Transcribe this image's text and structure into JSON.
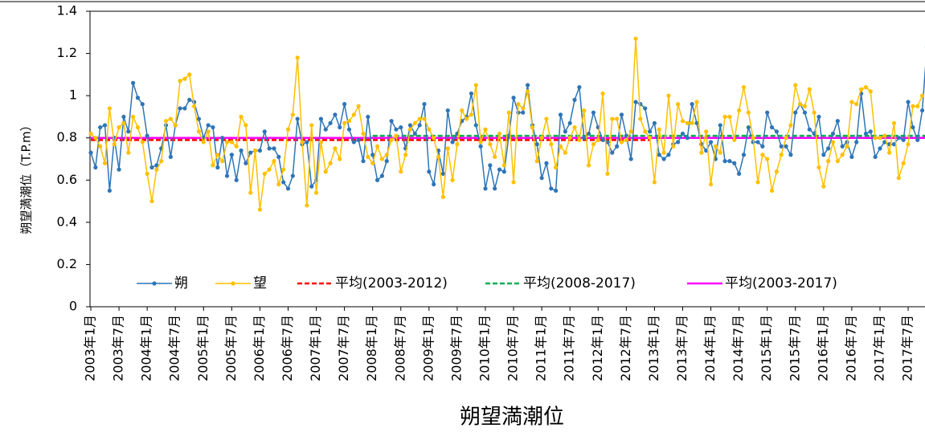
{
  "chart_data": {
    "type": "line",
    "xlabel": "朔望満潮位",
    "ylabel": "朔望満潮位（T.P.m）",
    "categories": [
      "2003年1月",
      null,
      null,
      null,
      null,
      null,
      "2003年7月",
      null,
      null,
      null,
      null,
      null,
      "2004年1月",
      null,
      null,
      null,
      null,
      null,
      "2004年7月",
      null,
      null,
      null,
      null,
      null,
      "2005年1月",
      null,
      null,
      null,
      null,
      null,
      "2005年7月",
      null,
      null,
      null,
      null,
      null,
      "2006年1月",
      null,
      null,
      null,
      null,
      null,
      "2006年7月",
      null,
      null,
      null,
      null,
      null,
      "2007年1月",
      null,
      null,
      null,
      null,
      null,
      "2007年7月",
      null,
      null,
      null,
      null,
      null,
      "2008年1月",
      null,
      null,
      null,
      null,
      null,
      "2008年7月",
      null,
      null,
      null,
      null,
      null,
      "2009年1月",
      null,
      null,
      null,
      null,
      null,
      "2009年7月",
      null,
      null,
      null,
      null,
      null,
      "2010年1月",
      null,
      null,
      null,
      null,
      null,
      "2010年7月",
      null,
      null,
      null,
      null,
      null,
      "2011年1月",
      null,
      null,
      null,
      null,
      null,
      "2011年7月",
      null,
      null,
      null,
      null,
      null,
      "2012年1月",
      null,
      null,
      null,
      null,
      null,
      "2012年7月",
      null,
      null,
      null,
      null,
      null,
      "2013年1月",
      null,
      null,
      null,
      null,
      null,
      "2013年7月",
      null,
      null,
      null,
      null,
      null,
      "2014年1月",
      null,
      null,
      null,
      null,
      null,
      "2014年7月",
      null,
      null,
      null,
      null,
      null,
      "2015年1月",
      null,
      null,
      null,
      null,
      null,
      "2015年7月",
      null,
      null,
      null,
      null,
      null,
      "2016年1月",
      null,
      null,
      null,
      null,
      null,
      "2016年7月",
      null,
      null,
      null,
      null,
      null,
      "2017年1月",
      null,
      null,
      null,
      null,
      null,
      "2017年7月",
      null,
      null,
      null,
      null,
      null
    ],
    "series": [
      {
        "name": "朔",
        "color": "#2e75b6",
        "values": [
          0.73,
          0.66,
          0.85,
          0.86,
          0.55,
          0.8,
          0.65,
          0.9,
          0.83,
          1.06,
          0.99,
          0.96,
          0.81,
          0.66,
          0.67,
          0.75,
          0.86,
          0.71,
          0.86,
          0.94,
          0.94,
          0.98,
          0.97,
          0.89,
          0.8,
          0.86,
          0.85,
          0.66,
          0.8,
          0.62,
          0.72,
          0.6,
          0.74,
          0.68,
          0.73,
          0.74,
          0.74,
          0.83,
          0.75,
          0.75,
          0.71,
          0.59,
          0.56,
          0.62,
          0.89,
          0.77,
          0.78,
          0.57,
          0.6,
          0.89,
          0.84,
          0.87,
          0.91,
          0.85,
          0.96,
          0.84,
          0.78,
          0.79,
          0.69,
          0.9,
          0.72,
          0.6,
          0.62,
          0.69,
          0.88,
          0.84,
          0.85,
          0.75,
          0.86,
          0.82,
          0.86,
          0.96,
          0.64,
          0.58,
          0.74,
          0.63,
          0.93,
          0.78,
          0.82,
          0.88,
          0.9,
          1.01,
          0.86,
          0.76,
          0.56,
          0.67,
          0.56,
          0.65,
          0.64,
          0.81,
          0.99,
          0.92,
          0.92,
          1.05,
          0.86,
          0.77,
          0.61,
          0.68,
          0.56,
          0.55,
          0.91,
          0.83,
          0.87,
          0.98,
          1.04,
          0.8,
          0.82,
          0.92,
          0.85,
          0.79,
          0.78,
          0.73,
          0.76,
          0.91,
          0.81,
          0.7,
          0.97,
          0.96,
          0.94,
          0.83,
          0.87,
          0.72,
          0.7,
          0.72,
          0.77,
          0.78,
          0.82,
          0.8,
          0.96,
          0.87,
          0.77,
          0.74,
          0.78,
          0.7,
          0.86,
          0.69,
          0.69,
          0.68,
          0.63,
          0.72,
          0.85,
          0.78,
          0.78,
          0.76,
          0.92,
          0.85,
          0.83,
          0.76,
          0.76,
          0.72,
          0.92,
          0.96,
          0.92,
          0.84,
          0.82,
          0.9,
          0.72,
          0.75,
          0.82,
          0.88,
          0.76,
          0.78,
          0.71,
          0.78,
          1.01,
          0.82,
          0.83,
          0.71,
          0.75,
          0.78,
          0.77,
          0.77,
          0.8,
          0.79,
          0.97,
          0.85,
          0.79,
          0.93,
          1.23,
          null
        ]
      },
      {
        "name": "望",
        "color": "#ffc000",
        "values": [
          0.82,
          0.8,
          0.76,
          0.68,
          0.94,
          0.77,
          0.85,
          0.87,
          0.73,
          0.9,
          0.85,
          0.78,
          0.63,
          0.5,
          0.65,
          0.69,
          0.88,
          0.89,
          0.86,
          1.07,
          1.08,
          1.1,
          0.95,
          0.83,
          0.78,
          0.83,
          0.67,
          0.72,
          0.69,
          0.78,
          0.78,
          0.76,
          0.9,
          0.86,
          0.54,
          0.74,
          0.46,
          0.63,
          0.65,
          0.69,
          0.58,
          0.65,
          0.84,
          0.91,
          1.18,
          0.78,
          0.48,
          0.86,
          0.54,
          0.78,
          0.64,
          0.68,
          0.75,
          0.7,
          0.87,
          0.88,
          0.91,
          0.95,
          0.82,
          0.71,
          0.68,
          0.76,
          0.7,
          0.72,
          0.79,
          0.81,
          0.64,
          0.72,
          0.84,
          0.87,
          0.89,
          0.89,
          0.84,
          0.8,
          0.71,
          0.52,
          0.75,
          0.6,
          0.77,
          0.93,
          0.89,
          0.91,
          1.05,
          0.78,
          0.84,
          0.77,
          0.71,
          0.82,
          0.67,
          0.92,
          0.59,
          0.96,
          0.94,
          1.02,
          0.85,
          0.69,
          0.8,
          0.89,
          0.77,
          0.66,
          0.76,
          0.73,
          0.8,
          0.85,
          0.79,
          0.93,
          0.67,
          0.77,
          0.79,
          1.01,
          0.63,
          0.89,
          0.89,
          0.78,
          0.79,
          0.83,
          1.27,
          0.89,
          0.83,
          0.8,
          0.59,
          0.84,
          0.73,
          1.0,
          0.76,
          0.96,
          0.88,
          0.87,
          0.87,
          0.97,
          0.73,
          0.83,
          0.58,
          0.76,
          0.73,
          0.9,
          0.9,
          0.79,
          0.93,
          1.04,
          0.92,
          0.8,
          0.59,
          0.72,
          0.7,
          0.55,
          0.64,
          0.72,
          0.8,
          0.86,
          1.05,
          0.96,
          0.95,
          1.03,
          0.92,
          0.66,
          0.57,
          0.69,
          0.78,
          0.69,
          0.72,
          0.76,
          0.97,
          0.96,
          1.03,
          1.04,
          1.02,
          0.8,
          0.8,
          0.81,
          0.73,
          0.87,
          0.61,
          0.68,
          0.77,
          0.95,
          0.95,
          1.0,
          null,
          null
        ]
      }
    ],
    "reference_lines": [
      {
        "name": "平均(2003-2012)",
        "color": "#ff0000",
        "dash": true,
        "value": 0.79,
        "from": 2003,
        "to": 2012
      },
      {
        "name": "平均(2008-2017)",
        "color": "#00b050",
        "dash": true,
        "value": 0.81,
        "from": 2008,
        "to": 2017
      },
      {
        "name": "平均(2003-2017)",
        "color": "#ff00ff",
        "dash": false,
        "value": 0.8,
        "from": 2003,
        "to": 2017
      }
    ],
    "ylim": [
      0,
      1.4
    ],
    "yticks": [
      0,
      0.2,
      0.4,
      0.6,
      0.8,
      1,
      1.2,
      1.4
    ]
  }
}
